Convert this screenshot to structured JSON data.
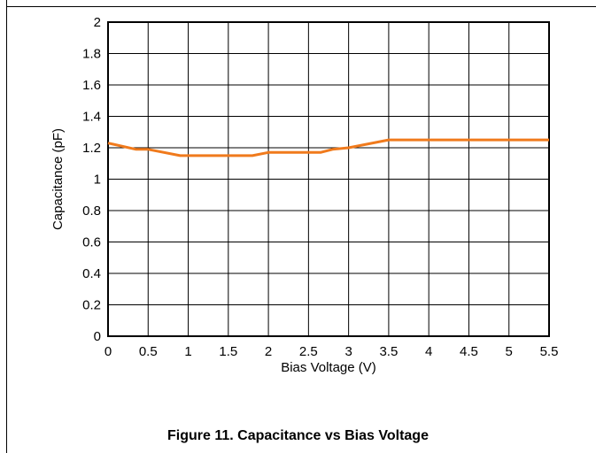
{
  "figure": {
    "caption": "Figure 11. Capacitance vs Bias Voltage"
  },
  "chart_data": {
    "type": "line",
    "title": "",
    "xlabel": "Bias Voltage (V)",
    "ylabel": "Capacitance (pF)",
    "xlim": [
      0,
      5.5
    ],
    "ylim": [
      0,
      2
    ],
    "x_ticks": [
      "0",
      "0.5",
      "1",
      "1.5",
      "2",
      "2.5",
      "3",
      "3.5",
      "4",
      "4.5",
      "5",
      "5.5"
    ],
    "y_ticks": [
      "0",
      "0.2",
      "0.4",
      "0.6",
      "0.8",
      "1",
      "1.2",
      "1.4",
      "1.6",
      "1.8",
      "2"
    ],
    "grid": true,
    "legend": "none",
    "series": [
      {
        "color": "#f07a1c",
        "x": [
          0,
          0.35,
          0.5,
          0.9,
          1.0,
          1.5,
          1.8,
          2.0,
          2.5,
          2.65,
          2.8,
          3.0,
          3.5,
          4.0,
          4.5,
          5.0,
          5.5
        ],
        "y": [
          1.23,
          1.19,
          1.19,
          1.15,
          1.15,
          1.15,
          1.15,
          1.17,
          1.17,
          1.17,
          1.19,
          1.2,
          1.25,
          1.25,
          1.25,
          1.25,
          1.25
        ]
      }
    ]
  }
}
